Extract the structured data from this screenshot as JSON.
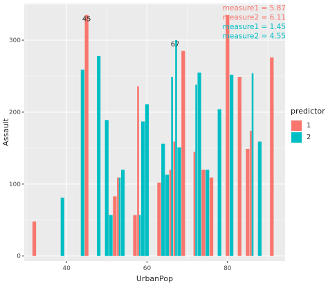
{
  "chart_data": {
    "type": "bar",
    "xlabel": "UrbanPop",
    "ylabel": "Assault",
    "xlim": [
      29.5,
      94.3
    ],
    "ylim": [
      -7,
      351
    ],
    "x_ticks": [
      40,
      60,
      80
    ],
    "y_ticks": [
      0,
      100,
      200,
      300
    ],
    "grid": true,
    "legend": {
      "title": "predictor",
      "placement": "right",
      "entries": [
        {
          "label": "1",
          "color": "#F8766D"
        },
        {
          "label": "2",
          "color": "#00BFC4"
        }
      ]
    },
    "series": [
      {
        "name": "1",
        "color": "#F8766D",
        "points": [
          [
            32,
            48
          ],
          [
            45,
            335
          ],
          [
            52,
            83
          ],
          [
            53,
            109
          ],
          [
            57,
            57
          ],
          [
            58,
            236
          ],
          [
            63,
            102
          ],
          [
            66,
            120
          ],
          [
            67,
            159
          ],
          [
            69,
            285
          ],
          [
            72,
            145
          ],
          [
            74,
            120
          ],
          [
            76,
            109
          ],
          [
            80,
            335
          ],
          [
            83,
            249
          ],
          [
            85,
            149
          ],
          [
            86,
            174
          ],
          [
            91,
            276
          ]
        ]
      },
      {
        "name": "2",
        "color": "#00BFC4",
        "points": [
          [
            39,
            81
          ],
          [
            44,
            259
          ],
          [
            48,
            278
          ],
          [
            50,
            189
          ],
          [
            51,
            57
          ],
          [
            53,
            109
          ],
          [
            54,
            120
          ],
          [
            58,
            57
          ],
          [
            59,
            187
          ],
          [
            60,
            211
          ],
          [
            64,
            156
          ],
          [
            65,
            113
          ],
          [
            66,
            249
          ],
          [
            67,
            300
          ],
          [
            68,
            151
          ],
          [
            72,
            238
          ],
          [
            73,
            255
          ],
          [
            75,
            120
          ],
          [
            78,
            204
          ],
          [
            81,
            252
          ],
          [
            86,
            254
          ],
          [
            88,
            159
          ]
        ]
      }
    ],
    "annotations": [
      {
        "text": "45",
        "x": 45,
        "y": 335
      },
      {
        "text": "67",
        "x": 67,
        "y": 300
      }
    ],
    "measures": [
      {
        "text": "measure1 = 5.87",
        "color": "#F8766D"
      },
      {
        "text": "measure2 = 6.11",
        "color": "#F8766D"
      },
      {
        "text": "measure1 = 1.45",
        "color": "#00BFC4"
      },
      {
        "text": "measure2 = 4.55",
        "color": "#00BFC4"
      }
    ]
  }
}
